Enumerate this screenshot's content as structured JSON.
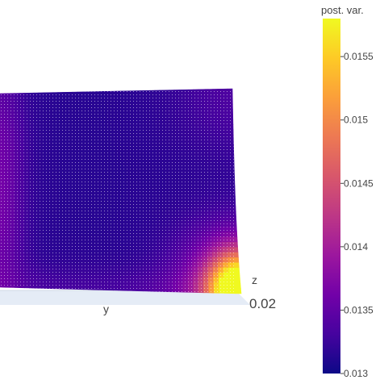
{
  "chart_data": {
    "type": "surface",
    "colorscale": "plasma",
    "colorbar": {
      "title": "post. var.",
      "range": [
        0.013,
        0.0158
      ],
      "ticks": [
        0.013,
        0.0135,
        0.014,
        0.0145,
        0.015,
        0.0155
      ],
      "tick_labels": [
        "0.013",
        "0.0135",
        "0.014",
        "0.0145",
        "0.015",
        "0.0155"
      ]
    },
    "axes": {
      "y_title": "y",
      "z_title": "z",
      "visible_tick_label": "0.02"
    },
    "surface_value_range": [
      0.0131,
      0.0158
    ],
    "grid": true
  }
}
